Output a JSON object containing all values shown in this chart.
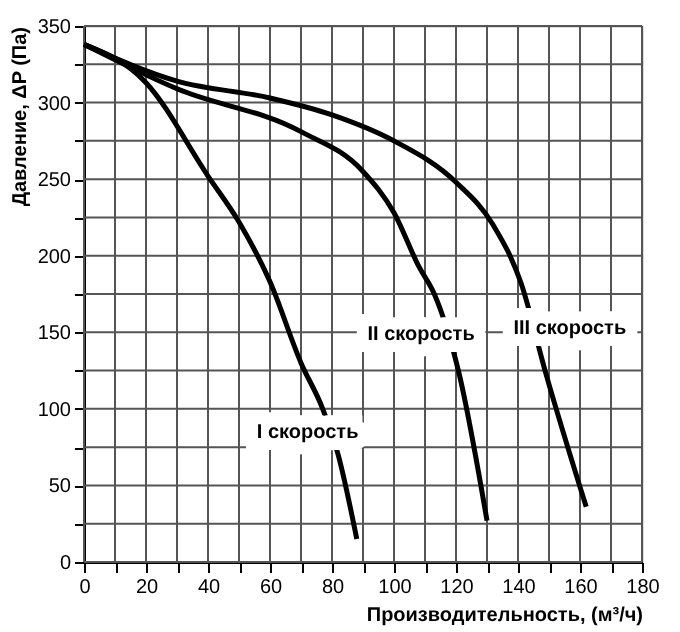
{
  "chart_data": {
    "type": "line",
    "xlabel": "Производительность, (м³/ч)",
    "ylabel": "Давление, ΔP (Па)",
    "series": [
      {
        "name": "I скорость",
        "color": "#000000",
        "x": [
          0,
          20,
          40,
          50,
          60,
          70,
          77,
          82,
          88
        ],
        "values": [
          338,
          313,
          252,
          222,
          183,
          130,
          100,
          70,
          15
        ]
      },
      {
        "name": "II скорость",
        "color": "#000000",
        "x": [
          0,
          30,
          70,
          90,
          100,
          108,
          113,
          121,
          130
        ],
        "values": [
          338,
          309,
          281,
          255,
          228,
          193,
          175,
          123,
          27
        ]
      },
      {
        "name": "III скорость",
        "color": "#000000",
        "x": [
          0,
          30,
          60,
          80,
          100,
          120,
          132,
          141,
          149,
          162
        ],
        "values": [
          338,
          314,
          303,
          292,
          275,
          248,
          220,
          182,
          123,
          36
        ]
      }
    ],
    "xlim": [
      0,
      180
    ],
    "xticks": [
      0,
      {
        "value": 10,
        "label": null
      },
      20,
      {
        "value": 30,
        "label": null
      },
      40,
      {
        "value": 50,
        "label": null
      },
      60,
      {
        "value": 70,
        "label": null
      },
      80,
      {
        "value": 90,
        "label": null
      },
      100,
      {
        "value": 110,
        "label": null
      },
      120,
      {
        "value": 130,
        "label": null
      },
      140,
      {
        "value": 150,
        "label": null
      },
      160,
      {
        "value": 170,
        "label": null
      },
      180
    ],
    "ylim": [
      0,
      350
    ],
    "yticks": [
      0,
      {
        "value": 25,
        "label": null
      },
      50,
      {
        "value": 75,
        "label": null
      },
      100,
      {
        "value": 125,
        "label": null
      },
      150,
      {
        "value": 175,
        "label": null
      },
      200,
      {
        "value": 225,
        "label": null
      },
      250,
      {
        "value": 275,
        "label": null
      },
      300,
      {
        "value": 325,
        "label": null
      },
      350
    ],
    "grid": true,
    "marker": "none",
    "line_style": "solid"
  }
}
